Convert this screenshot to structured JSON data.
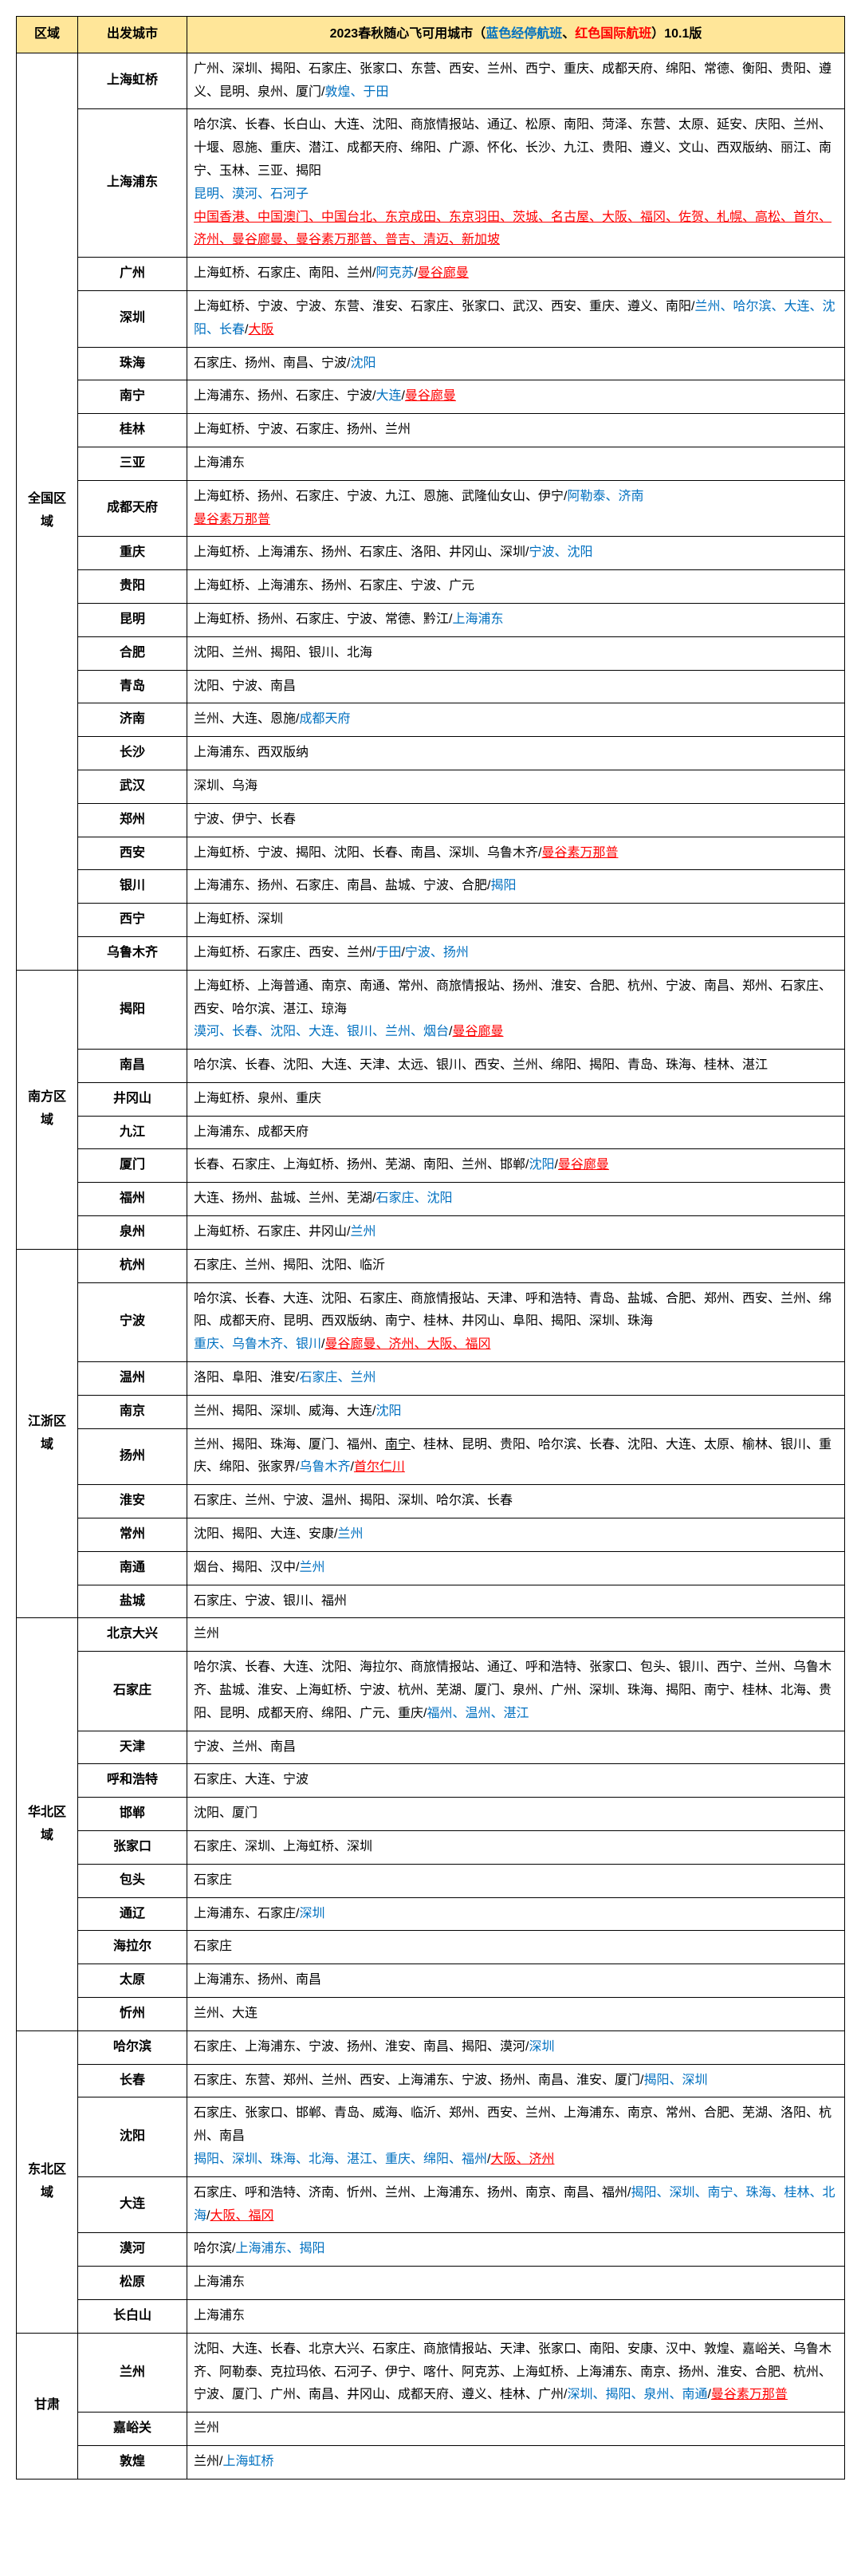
{
  "header": {
    "region": "区域",
    "depart": "出发城市",
    "title_prefix": "2023春秋随心飞可用城市（",
    "title_blue": "蓝色经停航班",
    "title_sep": "、",
    "title_red": "红色国际航班",
    "title_suffix": "）10.1版"
  },
  "colors": {
    "header_bg": "#ffe699",
    "border": "#000000",
    "blue": "#0070c0",
    "red": "#ff0000"
  },
  "regions": [
    {
      "name": "全国区域",
      "rows": [
        {
          "depart": "上海虹桥",
          "parts": [
            {
              "t": "广州、深圳、揭阳、石家庄、张家口、东营、西安、兰州、西宁、重庆、成都天府、绵阳、常德、衡阳、贵阳、遵义、昆明、泉州、厦门/"
            },
            {
              "t": "敦煌、于田",
              "c": "blue"
            }
          ]
        },
        {
          "depart": "上海浦东",
          "parts": [
            {
              "t": "哈尔滨、长春、长白山、大连、沈阳、商旅情报站、通辽、松原、南阳、菏泽、东营、太原、延安、庆阳、兰州、十堰、恩施、重庆、潜江、成都天府、绵阳、广源、怀化、长沙、九江、贵阳、遵义、文山、西双版纳、丽江、南宁、玉林、三亚、揭阳"
            },
            {
              "t": "昆明、漠河、石河子",
              "c": "blue"
            },
            {
              "t": "中国香港、中国澳门、中国台北、东京成田、东京羽田、茨城、名古屋、大阪、福冈、佐贺、札幌、高松、首尔、济州、曼谷廊曼、曼谷素万那普、普吉、清迈、新加坡",
              "c": "red-u"
            }
          ]
        },
        {
          "depart": "广州",
          "parts": [
            {
              "t": "上海虹桥、石家庄、南阳、兰州/"
            },
            {
              "t": "阿克苏",
              "c": "blue"
            },
            {
              "t": "/"
            },
            {
              "t": "曼谷廊曼",
              "c": "red-u"
            }
          ]
        },
        {
          "depart": "深圳",
          "parts": [
            {
              "t": "上海虹桥、宁波、宁波、东营、淮安、石家庄、张家口、武汉、西安、重庆、遵义、南阳/"
            },
            {
              "t": "兰州、哈尔滨、大连、沈阳、长春",
              "c": "blue"
            },
            {
              "t": "/"
            },
            {
              "t": "大阪",
              "c": "red-u"
            }
          ]
        },
        {
          "depart": "珠海",
          "parts": [
            {
              "t": "石家庄、扬州、南昌、宁波/"
            },
            {
              "t": "沈阳",
              "c": "blue"
            }
          ]
        },
        {
          "depart": "南宁",
          "parts": [
            {
              "t": "上海浦东、扬州、石家庄、宁波/"
            },
            {
              "t": "大连",
              "c": "blue"
            },
            {
              "t": "/"
            },
            {
              "t": "曼谷廊曼",
              "c": "red-u"
            }
          ]
        },
        {
          "depart": "桂林",
          "parts": [
            {
              "t": "上海虹桥、宁波、石家庄、扬州、兰州"
            }
          ]
        },
        {
          "depart": "三亚",
          "parts": [
            {
              "t": "上海浦东"
            }
          ]
        },
        {
          "depart": "成都天府",
          "parts": [
            {
              "t": "上海虹桥、扬州、石家庄、宁波、九江、恩施、武隆仙女山、伊宁/"
            },
            {
              "t": "阿勒泰、济南",
              "c": "blue"
            },
            {
              "t": "曼谷素万那普",
              "c": "red-u"
            }
          ]
        },
        {
          "depart": "重庆",
          "parts": [
            {
              "t": "上海虹桥、上海浦东、扬州、石家庄、洛阳、井冈山、深圳/"
            },
            {
              "t": "宁波、沈阳",
              "c": "blue"
            }
          ]
        },
        {
          "depart": "贵阳",
          "parts": [
            {
              "t": "上海虹桥、上海浦东、扬州、石家庄、宁波、广元"
            }
          ]
        },
        {
          "depart": "昆明",
          "parts": [
            {
              "t": "上海虹桥、扬州、石家庄、宁波、常德、黔江/"
            },
            {
              "t": "上海浦东",
              "c": "blue"
            }
          ]
        },
        {
          "depart": "合肥",
          "parts": [
            {
              "t": "沈阳、兰州、揭阳、银川、北海"
            }
          ]
        },
        {
          "depart": "青岛",
          "parts": [
            {
              "t": "沈阳、宁波、南昌"
            }
          ]
        },
        {
          "depart": "济南",
          "parts": [
            {
              "t": "兰州、大连、恩施/"
            },
            {
              "t": "成都天府",
              "c": "blue"
            }
          ]
        },
        {
          "depart": "长沙",
          "parts": [
            {
              "t": "上海浦东、西双版纳"
            }
          ]
        },
        {
          "depart": "武汉",
          "parts": [
            {
              "t": "深圳、乌海"
            }
          ]
        },
        {
          "depart": "郑州",
          "parts": [
            {
              "t": "宁波、伊宁、长春"
            }
          ]
        },
        {
          "depart": "西安",
          "parts": [
            {
              "t": "上海虹桥、宁波、揭阳、沈阳、长春、南昌、深圳、乌鲁木齐/"
            },
            {
              "t": "曼谷素万那普",
              "c": "red-u"
            }
          ]
        },
        {
          "depart": "银川",
          "parts": [
            {
              "t": "上海浦东、扬州、石家庄、南昌、盐城、宁波、合肥/"
            },
            {
              "t": "揭阳",
              "c": "blue"
            }
          ]
        },
        {
          "depart": "西宁",
          "parts": [
            {
              "t": "上海虹桥、深圳"
            }
          ]
        },
        {
          "depart": "乌鲁木齐",
          "parts": [
            {
              "t": "上海虹桥、石家庄、西安、兰州/"
            },
            {
              "t": "于田",
              "c": "blue"
            },
            {
              "t": "/"
            },
            {
              "t": "宁波、扬州",
              "c": "blue"
            }
          ]
        }
      ]
    },
    {
      "name": "南方区域",
      "rows": [
        {
          "depart": "揭阳",
          "parts": [
            {
              "t": "上海虹桥、上海普通、南京、南通、常州、商旅情报站、扬州、淮安、合肥、杭州、宁波、南昌、郑州、石家庄、西安、哈尔滨、湛江、琼海"
            },
            {
              "t": "漠河、长春、沈阳、大连、银川、兰州、烟台",
              "c": "blue"
            },
            {
              "t": "/"
            },
            {
              "t": "曼谷廊曼",
              "c": "red-u"
            }
          ]
        },
        {
          "depart": "南昌",
          "parts": [
            {
              "t": "哈尔滨、长春、沈阳、大连、天津、太远、银川、西安、兰州、绵阳、揭阳、青岛、珠海、桂林、湛江"
            }
          ]
        },
        {
          "depart": "井冈山",
          "parts": [
            {
              "t": "上海虹桥、泉州、重庆"
            }
          ]
        },
        {
          "depart": "九江",
          "parts": [
            {
              "t": "上海浦东、成都天府"
            }
          ]
        },
        {
          "depart": "厦门",
          "parts": [
            {
              "t": "长春、石家庄、上海虹桥、扬州、芜湖、南阳、兰州、邯郸/"
            },
            {
              "t": "沈阳",
              "c": "blue"
            },
            {
              "t": "/"
            },
            {
              "t": "曼谷廊曼",
              "c": "red-u"
            }
          ]
        },
        {
          "depart": "福州",
          "parts": [
            {
              "t": "大连、扬州、盐城、兰州、芜湖/"
            },
            {
              "t": "石家庄、沈阳",
              "c": "blue"
            }
          ]
        },
        {
          "depart": "泉州",
          "parts": [
            {
              "t": "上海虹桥、石家庄、井冈山/"
            },
            {
              "t": "兰州",
              "c": "blue"
            }
          ]
        }
      ]
    },
    {
      "name": "江浙区域",
      "rows": [
        {
          "depart": "杭州",
          "parts": [
            {
              "t": "石家庄、兰州、揭阳、沈阳、临沂"
            }
          ]
        },
        {
          "depart": "宁波",
          "parts": [
            {
              "t": "哈尔滨、长春、大连、沈阳、石家庄、商旅情报站、天津、呼和浩特、青岛、盐城、合肥、郑州、西安、兰州、绵阳、成都天府、昆明、西双版纳、南宁、桂林、井冈山、阜阳、揭阳、深圳、珠海"
            },
            {
              "t": "重庆、乌鲁木齐、银川",
              "c": "blue"
            },
            {
              "t": "/"
            },
            {
              "t": "曼谷廊曼、济州、大阪、福冈",
              "c": "red-u"
            }
          ]
        },
        {
          "depart": "温州",
          "parts": [
            {
              "t": "洛阳、阜阳、淮安/"
            },
            {
              "t": "石家庄、兰州",
              "c": "blue"
            }
          ]
        },
        {
          "depart": "南京",
          "parts": [
            {
              "t": "兰州、揭阳、深圳、威海、大连/"
            },
            {
              "t": "沈阳",
              "c": "blue"
            }
          ]
        },
        {
          "depart": "扬州",
          "parts": [
            {
              "t": "兰州、揭阳、珠海、厦门、福州、"
            },
            {
              "t": "南宁",
              "c": "ul"
            },
            {
              "t": "、桂林、昆明、贵阳、哈尔滨、长春、沈阳、大连、太原、榆林、银川、重庆、绵阳、张家界/"
            },
            {
              "t": "乌鲁木齐",
              "c": "blue"
            },
            {
              "t": "/"
            },
            {
              "t": "首尔仁川",
              "c": "red-u"
            }
          ]
        },
        {
          "depart": "淮安",
          "parts": [
            {
              "t": "石家庄、兰州、宁波、温州、揭阳、深圳、哈尔滨、长春"
            }
          ]
        },
        {
          "depart": "常州",
          "parts": [
            {
              "t": "沈阳、揭阳、大连、安康/"
            },
            {
              "t": "兰州",
              "c": "blue"
            }
          ]
        },
        {
          "depart": "南通",
          "parts": [
            {
              "t": "烟台、揭阳、汉中/"
            },
            {
              "t": "兰州",
              "c": "blue"
            }
          ]
        },
        {
          "depart": "盐城",
          "parts": [
            {
              "t": "石家庄、宁波、银川、福州"
            }
          ]
        }
      ]
    },
    {
      "name": "华北区域",
      "rows": [
        {
          "depart": "北京大兴",
          "parts": [
            {
              "t": "兰州"
            }
          ]
        },
        {
          "depart": "石家庄",
          "parts": [
            {
              "t": "哈尔滨、长春、大连、沈阳、海拉尔、商旅情报站、通辽、呼和浩特、张家口、包头、银川、西宁、兰州、乌鲁木齐、盐城、淮安、上海虹桥、宁波、杭州、芜湖、厦门、泉州、广州、深圳、珠海、揭阳、南宁、桂林、北海、贵阳、昆明、成都天府、绵阳、广元、重庆/"
            },
            {
              "t": "福州、温州、湛江",
              "c": "blue"
            }
          ]
        },
        {
          "depart": "天津",
          "parts": [
            {
              "t": "宁波、兰州、南昌"
            }
          ]
        },
        {
          "depart": "呼和浩特",
          "parts": [
            {
              "t": "石家庄、大连、宁波"
            }
          ]
        },
        {
          "depart": "邯郸",
          "parts": [
            {
              "t": "沈阳、厦门"
            }
          ]
        },
        {
          "depart": "张家口",
          "parts": [
            {
              "t": "石家庄、深圳、上海虹桥、深圳"
            }
          ]
        },
        {
          "depart": "包头",
          "parts": [
            {
              "t": "石家庄"
            }
          ]
        },
        {
          "depart": "通辽",
          "parts": [
            {
              "t": "上海浦东、石家庄/"
            },
            {
              "t": "深圳",
              "c": "blue"
            }
          ]
        },
        {
          "depart": "海拉尔",
          "parts": [
            {
              "t": "石家庄"
            }
          ]
        },
        {
          "depart": "太原",
          "parts": [
            {
              "t": "上海浦东、扬州、南昌"
            }
          ]
        },
        {
          "depart": "忻州",
          "parts": [
            {
              "t": "兰州、大连"
            }
          ]
        }
      ]
    },
    {
      "name": "东北区域",
      "rows": [
        {
          "depart": "哈尔滨",
          "parts": [
            {
              "t": "石家庄、上海浦东、宁波、扬州、淮安、南昌、揭阳、漠河/"
            },
            {
              "t": "深圳",
              "c": "blue"
            }
          ]
        },
        {
          "depart": "长春",
          "parts": [
            {
              "t": "石家庄、东营、郑州、兰州、西安、上海浦东、宁波、扬州、南昌、淮安、厦门/"
            },
            {
              "t": "揭阳、深圳",
              "c": "blue"
            }
          ]
        },
        {
          "depart": "沈阳",
          "parts": [
            {
              "t": "石家庄、张家口、邯郸、青岛、威海、临沂、郑州、西安、兰州、上海浦东、南京、常州、合肥、芜湖、洛阳、杭州、南昌"
            },
            {
              "t": "揭阳、深圳、珠海、北海、湛江、重庆、绵阳、福州",
              "c": "blue"
            },
            {
              "t": "/"
            },
            {
              "t": "大阪、济州",
              "c": "red-u"
            }
          ]
        },
        {
          "depart": "大连",
          "parts": [
            {
              "t": "石家庄、呼和浩特、济南、忻州、兰州、上海浦东、扬州、南京、南昌、福州/"
            },
            {
              "t": "揭阳、深圳、南宁、珠海、桂林、北海",
              "c": "blue"
            },
            {
              "t": "/"
            },
            {
              "t": "大阪、福冈",
              "c": "red-u"
            }
          ]
        },
        {
          "depart": "漠河",
          "parts": [
            {
              "t": "哈尔滨/"
            },
            {
              "t": "上海浦东、揭阳",
              "c": "blue"
            }
          ]
        },
        {
          "depart": "松原",
          "parts": [
            {
              "t": "上海浦东"
            }
          ]
        },
        {
          "depart": "长白山",
          "parts": [
            {
              "t": "上海浦东"
            }
          ]
        }
      ]
    },
    {
      "name": "甘肃",
      "rows": [
        {
          "depart": "兰州",
          "parts": [
            {
              "t": "沈阳、大连、长春、北京大兴、石家庄、商旅情报站、天津、张家口、南阳、安康、汉中、敦煌、嘉峪关、乌鲁木齐、阿勒泰、克拉玛依、石河子、伊宁、喀什、阿克苏、上海虹桥、上海浦东、南京、扬州、淮安、合肥、杭州、宁波、厦门、广州、南昌、井冈山、成都天府、遵义、桂林、广州/"
            },
            {
              "t": "深圳、揭阳、泉州、南通",
              "c": "blue"
            },
            {
              "t": "/"
            },
            {
              "t": "曼谷素万那普",
              "c": "red-u"
            }
          ]
        },
        {
          "depart": "嘉峪关",
          "parts": [
            {
              "t": "兰州"
            }
          ]
        },
        {
          "depart": "敦煌",
          "parts": [
            {
              "t": "兰州/"
            },
            {
              "t": "上海虹桥",
              "c": "blue"
            }
          ]
        }
      ]
    }
  ]
}
